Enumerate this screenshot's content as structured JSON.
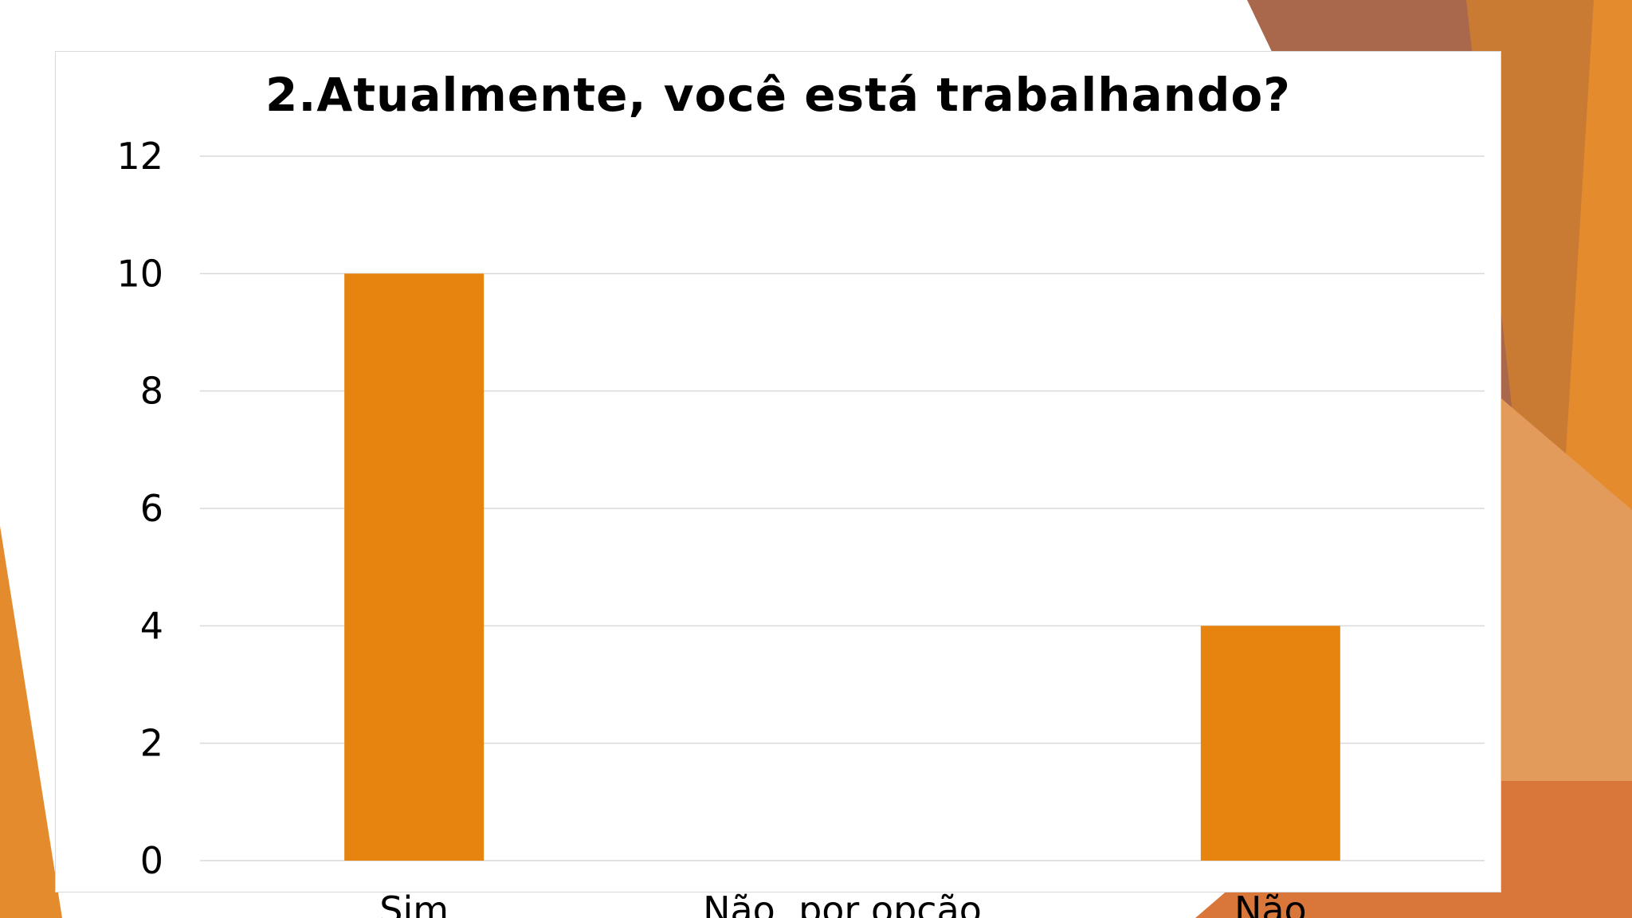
{
  "theme": {
    "accent": "#E6840F",
    "background_shapes": [
      "#A9674C",
      "#C06A3E",
      "#D2792A",
      "#E48B2E",
      "#E39B5C"
    ]
  },
  "chart_data": {
    "type": "bar",
    "title": "2.Atualmente, você está trabalhando?",
    "categories": [
      "Sim",
      "Não, por opção",
      "Não"
    ],
    "values": [
      10,
      0,
      4
    ],
    "ylim": [
      0,
      12
    ],
    "yticks": [
      0,
      2,
      4,
      6,
      8,
      10,
      12
    ],
    "xlabel": "",
    "ylabel": "",
    "grid": true,
    "bar_color": "#E6840F"
  }
}
